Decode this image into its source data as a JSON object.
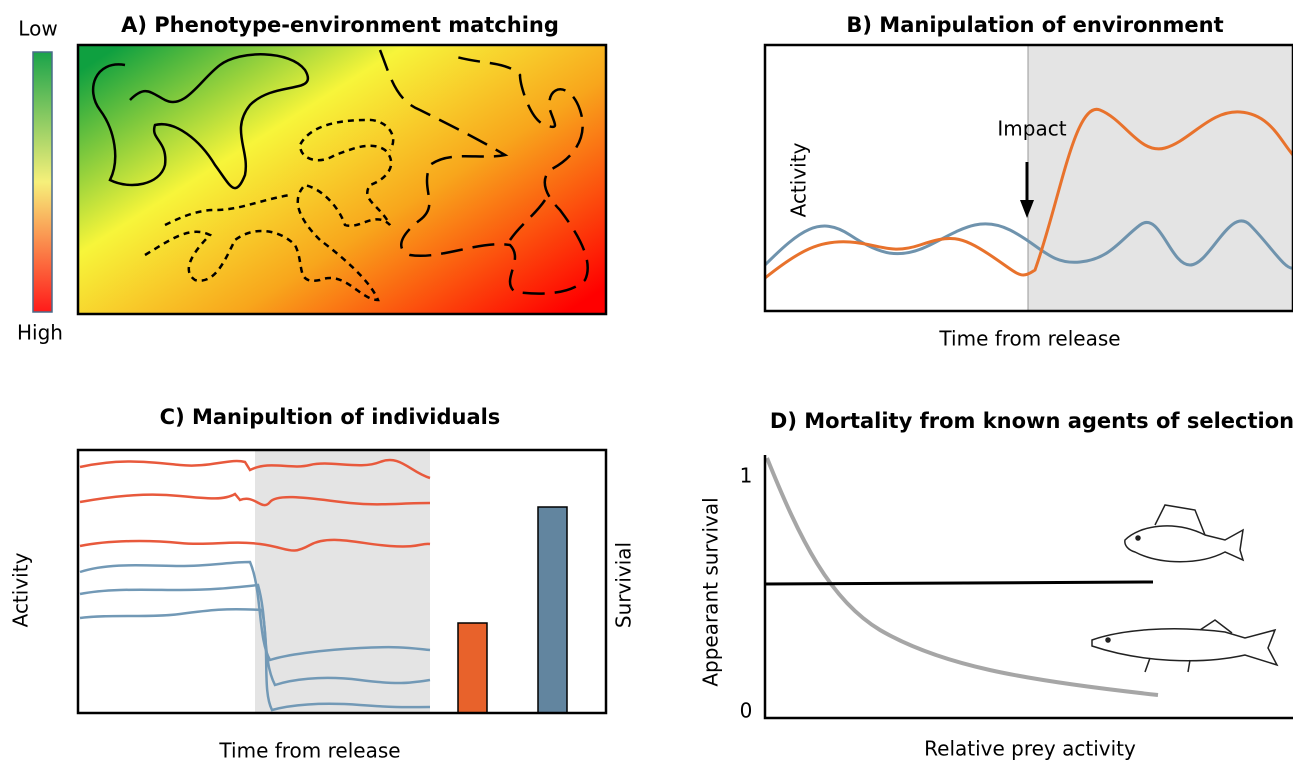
{
  "panel_a": {
    "title": "A) Phenotype-environment matching",
    "scale_low": "Low",
    "scale_high": "High"
  },
  "panel_b": {
    "title": "B) Manipulation of environment",
    "annotation": "Impact",
    "y_label": "Activity",
    "x_label": "Time from release"
  },
  "panel_c": {
    "title": "C) Manipultion of individuals",
    "y_label": "Activity",
    "y2_label": "Survivial",
    "x_label": "Time from release"
  },
  "panel_d": {
    "title": "D) Mortality from known agents of selection",
    "y_label": "Appearant survival",
    "x_label": "Relative prey activity",
    "y_ticks": [
      "1",
      "0"
    ]
  }
}
